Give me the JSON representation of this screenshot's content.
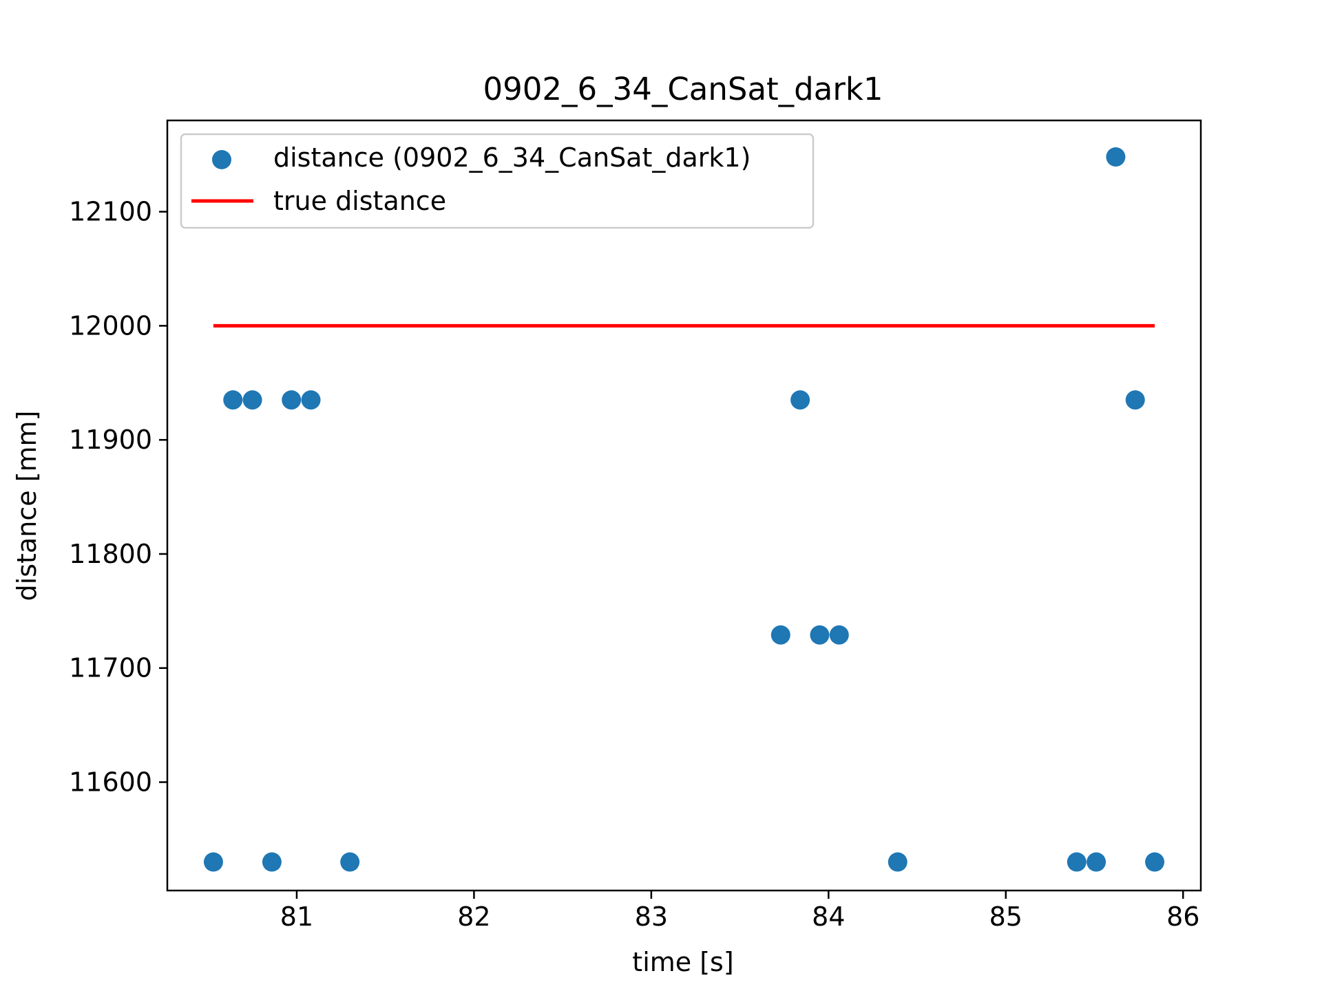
{
  "chart_data": {
    "type": "scatter",
    "title": "0902_6_34_CanSat_dark1",
    "xlabel": "time [s]",
    "ylabel": "distance [mm]",
    "xlim": [
      80.27,
      86.1
    ],
    "ylim": [
      11505,
      12180
    ],
    "x_ticks": [
      81,
      82,
      83,
      84,
      85,
      86
    ],
    "y_ticks": [
      11600,
      11700,
      11800,
      11900,
      12000,
      12100
    ],
    "grid": false,
    "legend_position": "upper-left",
    "series": [
      {
        "name": "distance (0902_6_34_CanSat_dark1)",
        "kind": "scatter",
        "color": "#1f77b4",
        "points": [
          {
            "x": 80.53,
            "y": 11530
          },
          {
            "x": 80.64,
            "y": 11935
          },
          {
            "x": 80.75,
            "y": 11935
          },
          {
            "x": 80.86,
            "y": 11530
          },
          {
            "x": 80.97,
            "y": 11935
          },
          {
            "x": 81.08,
            "y": 11935
          },
          {
            "x": 81.3,
            "y": 11530
          },
          {
            "x": 83.73,
            "y": 11729
          },
          {
            "x": 83.84,
            "y": 11935
          },
          {
            "x": 83.95,
            "y": 11729
          },
          {
            "x": 84.06,
            "y": 11729
          },
          {
            "x": 84.39,
            "y": 11530
          },
          {
            "x": 85.4,
            "y": 11530
          },
          {
            "x": 85.51,
            "y": 11530
          },
          {
            "x": 85.62,
            "y": 12148
          },
          {
            "x": 85.73,
            "y": 11935
          },
          {
            "x": 85.84,
            "y": 11530
          }
        ]
      },
      {
        "name": "true distance",
        "kind": "line",
        "color": "#ff0000",
        "points": [
          {
            "x": 80.53,
            "y": 12000
          },
          {
            "x": 85.84,
            "y": 12000
          }
        ]
      }
    ]
  }
}
